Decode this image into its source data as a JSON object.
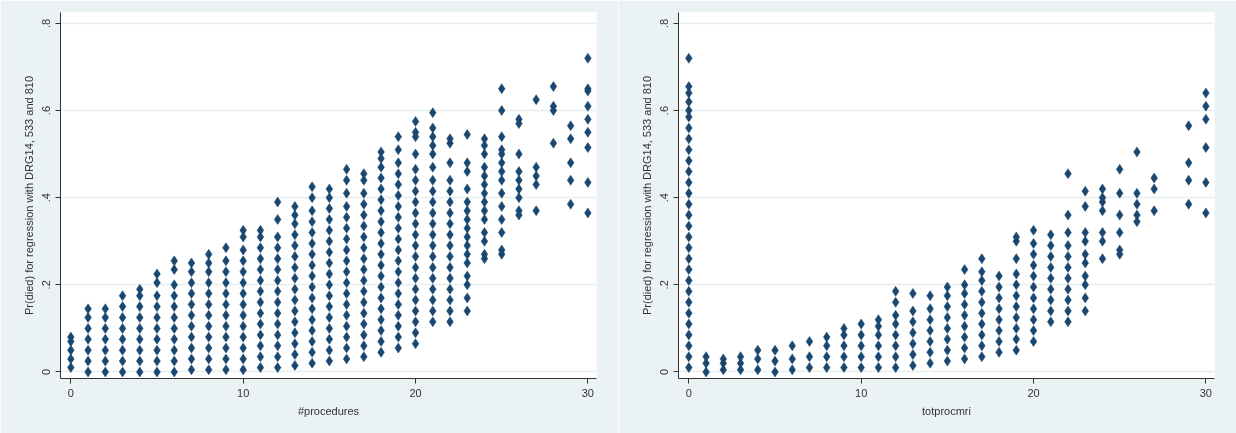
{
  "chart_data": [
    {
      "type": "scatter",
      "xlabel": "#procedures",
      "ylabel": "Pr(died) for regression with DRG14, 533 and 810",
      "color": "#1a476f",
      "marker": "diamond",
      "grid": "y",
      "xlim": [
        -0.6,
        30.5
      ],
      "xticks": [
        0,
        10,
        20,
        30
      ],
      "ylim": [
        -0.015,
        0.825
      ],
      "yticks": [
        0,
        {
          "value": 0.2,
          "label": ".2"
        },
        {
          "value": 0.4,
          "label": ".4"
        },
        {
          "value": 0.6,
          "label": ".6"
        },
        {
          "value": 0.8,
          "label": ".8"
        }
      ],
      "series": [
        {
          "x": [
            0,
            0,
            0,
            0,
            0
          ],
          "values": [
            0.01,
            0.03,
            0.05,
            0.07,
            0.08
          ]
        },
        {
          "x": [
            1,
            1,
            1,
            1,
            1,
            1,
            1
          ],
          "values": [
            0,
            0.025,
            0.05,
            0.075,
            0.1,
            0.125,
            0.145
          ]
        },
        {
          "x": [
            2,
            2,
            2,
            2,
            2,
            2,
            2
          ],
          "values": [
            0,
            0.025,
            0.05,
            0.075,
            0.1,
            0.125,
            0.145
          ]
        },
        {
          "x": [
            3,
            3,
            3,
            3,
            3,
            3,
            3,
            3
          ],
          "values": [
            0,
            0.025,
            0.05,
            0.075,
            0.1,
            0.125,
            0.15,
            0.175
          ]
        },
        {
          "x": [
            4,
            4,
            4,
            4,
            4,
            4,
            4,
            4,
            4
          ],
          "values": [
            0,
            0.025,
            0.05,
            0.075,
            0.1,
            0.125,
            0.15,
            0.175,
            0.19
          ]
        },
        {
          "x": [
            5,
            5,
            5,
            5,
            5,
            5,
            5,
            5,
            5,
            5
          ],
          "values": [
            0,
            0.025,
            0.05,
            0.075,
            0.1,
            0.125,
            0.15,
            0.175,
            0.205,
            0.225
          ]
        },
        {
          "x": [
            6,
            6,
            6,
            6,
            6,
            6,
            6,
            6,
            6,
            6,
            6
          ],
          "values": [
            0,
            0.025,
            0.05,
            0.075,
            0.1,
            0.125,
            0.15,
            0.175,
            0.2,
            0.235,
            0.255
          ]
        },
        {
          "x": [
            7,
            7,
            7,
            7,
            7,
            7,
            7,
            7,
            7,
            7,
            7
          ],
          "values": [
            0.005,
            0.03,
            0.055,
            0.08,
            0.105,
            0.13,
            0.155,
            0.18,
            0.205,
            0.23,
            0.25
          ]
        },
        {
          "x": [
            8,
            8,
            8,
            8,
            8,
            8,
            8,
            8,
            8,
            8,
            8,
            8
          ],
          "values": [
            0.005,
            0.03,
            0.055,
            0.08,
            0.105,
            0.13,
            0.155,
            0.18,
            0.205,
            0.23,
            0.25,
            0.27
          ]
        },
        {
          "x": [
            9,
            9,
            9,
            9,
            9,
            9,
            9,
            9,
            9,
            9,
            9,
            9
          ],
          "values": [
            0.005,
            0.03,
            0.055,
            0.08,
            0.105,
            0.13,
            0.155,
            0.18,
            0.205,
            0.23,
            0.255,
            0.285
          ]
        },
        {
          "x": [
            10,
            10,
            10,
            10,
            10,
            10,
            10,
            10,
            10,
            10,
            10,
            10,
            10,
            10
          ],
          "values": [
            0.005,
            0.03,
            0.055,
            0.08,
            0.105,
            0.13,
            0.155,
            0.18,
            0.205,
            0.23,
            0.255,
            0.28,
            0.31,
            0.325
          ]
        },
        {
          "x": [
            11,
            11,
            11,
            11,
            11,
            11,
            11,
            11,
            11,
            11,
            11,
            11,
            11,
            11
          ],
          "values": [
            0.01,
            0.035,
            0.06,
            0.085,
            0.11,
            0.135,
            0.16,
            0.185,
            0.21,
            0.235,
            0.26,
            0.285,
            0.31,
            0.325
          ]
        },
        {
          "x": [
            12,
            12,
            12,
            12,
            12,
            12,
            12,
            12,
            12,
            12,
            12,
            12,
            12,
            12,
            12
          ],
          "values": [
            0.01,
            0.035,
            0.06,
            0.085,
            0.11,
            0.135,
            0.16,
            0.185,
            0.21,
            0.235,
            0.26,
            0.285,
            0.31,
            0.35,
            0.39
          ]
        },
        {
          "x": [
            13,
            13,
            13,
            13,
            13,
            13,
            13,
            13,
            13,
            13,
            13,
            13,
            13,
            13,
            13,
            13
          ],
          "values": [
            0.015,
            0.04,
            0.065,
            0.09,
            0.115,
            0.14,
            0.165,
            0.19,
            0.215,
            0.24,
            0.265,
            0.29,
            0.315,
            0.34,
            0.36,
            0.38
          ]
        },
        {
          "x": [
            14,
            14,
            14,
            14,
            14,
            14,
            14,
            14,
            14,
            14,
            14,
            14,
            14,
            14,
            14,
            14,
            14
          ],
          "values": [
            0.02,
            0.045,
            0.07,
            0.095,
            0.12,
            0.145,
            0.17,
            0.195,
            0.22,
            0.245,
            0.27,
            0.295,
            0.32,
            0.345,
            0.37,
            0.4,
            0.425
          ]
        },
        {
          "x": [
            15,
            15,
            15,
            15,
            15,
            15,
            15,
            15,
            15,
            15,
            15,
            15,
            15,
            15,
            15,
            15,
            15
          ],
          "values": [
            0.025,
            0.05,
            0.075,
            0.1,
            0.125,
            0.15,
            0.175,
            0.2,
            0.225,
            0.25,
            0.275,
            0.3,
            0.325,
            0.35,
            0.375,
            0.4,
            0.42
          ]
        },
        {
          "x": [
            16,
            16,
            16,
            16,
            16,
            16,
            16,
            16,
            16,
            16,
            16,
            16,
            16,
            16,
            16,
            16,
            16,
            16
          ],
          "values": [
            0.03,
            0.055,
            0.08,
            0.105,
            0.13,
            0.155,
            0.18,
            0.205,
            0.23,
            0.255,
            0.28,
            0.305,
            0.33,
            0.355,
            0.38,
            0.41,
            0.44,
            0.465
          ]
        },
        {
          "x": [
            17,
            17,
            17,
            17,
            17,
            17,
            17,
            17,
            17,
            17,
            17,
            17,
            17,
            17,
            17,
            17,
            17,
            17
          ],
          "values": [
            0.035,
            0.06,
            0.085,
            0.11,
            0.135,
            0.16,
            0.185,
            0.21,
            0.235,
            0.26,
            0.285,
            0.31,
            0.335,
            0.36,
            0.385,
            0.41,
            0.44,
            0.455
          ]
        },
        {
          "x": [
            18,
            18,
            18,
            18,
            18,
            18,
            18,
            18,
            18,
            18,
            18,
            18,
            18,
            18,
            18,
            18,
            18,
            18,
            18,
            18
          ],
          "values": [
            0.045,
            0.07,
            0.095,
            0.12,
            0.145,
            0.17,
            0.195,
            0.22,
            0.245,
            0.27,
            0.295,
            0.32,
            0.345,
            0.37,
            0.395,
            0.42,
            0.445,
            0.47,
            0.49,
            0.505
          ]
        },
        {
          "x": [
            19,
            19,
            19,
            19,
            19,
            19,
            19,
            19,
            19,
            19,
            19,
            19,
            19,
            19,
            19,
            19,
            19,
            19,
            19,
            19
          ],
          "values": [
            0.055,
            0.08,
            0.105,
            0.13,
            0.155,
            0.18,
            0.205,
            0.23,
            0.255,
            0.28,
            0.305,
            0.33,
            0.355,
            0.38,
            0.405,
            0.43,
            0.455,
            0.48,
            0.51,
            0.54
          ]
        },
        {
          "x": [
            20,
            20,
            20,
            20,
            20,
            20,
            20,
            20,
            20,
            20,
            20,
            20,
            20,
            20,
            20,
            20,
            20,
            20,
            20,
            20,
            20
          ],
          "values": [
            0.065,
            0.09,
            0.115,
            0.14,
            0.165,
            0.19,
            0.215,
            0.24,
            0.265,
            0.29,
            0.315,
            0.34,
            0.365,
            0.39,
            0.415,
            0.44,
            0.465,
            0.5,
            0.54,
            0.55,
            0.575
          ]
        },
        {
          "x": [
            21,
            21,
            21,
            21,
            21,
            21,
            21,
            21,
            21,
            21,
            21,
            21,
            21,
            21,
            21,
            21,
            21,
            21,
            21,
            21
          ],
          "values": [
            0.115,
            0.14,
            0.165,
            0.19,
            0.215,
            0.24,
            0.265,
            0.29,
            0.315,
            0.34,
            0.365,
            0.39,
            0.415,
            0.44,
            0.47,
            0.5,
            0.52,
            0.54,
            0.56,
            0.595
          ]
        },
        {
          "x": [
            22,
            22,
            22,
            22,
            22,
            22,
            22,
            22,
            22,
            22,
            22,
            22,
            22,
            22,
            22,
            22,
            22
          ],
          "values": [
            0.115,
            0.14,
            0.165,
            0.19,
            0.215,
            0.24,
            0.265,
            0.29,
            0.315,
            0.34,
            0.365,
            0.39,
            0.415,
            0.44,
            0.48,
            0.525,
            0.535
          ]
        },
        {
          "x": [
            23,
            23,
            23,
            23,
            23,
            23,
            23,
            23,
            23,
            23,
            23,
            23,
            23,
            23,
            23,
            23
          ],
          "values": [
            0.14,
            0.17,
            0.2,
            0.22,
            0.25,
            0.27,
            0.29,
            0.31,
            0.33,
            0.35,
            0.37,
            0.39,
            0.42,
            0.46,
            0.48,
            0.545
          ]
        },
        {
          "x": [
            24,
            24,
            24,
            24,
            24,
            24,
            24,
            24,
            24,
            24,
            24,
            24,
            24,
            24
          ],
          "values": [
            0.26,
            0.27,
            0.3,
            0.32,
            0.35,
            0.37,
            0.39,
            0.41,
            0.43,
            0.45,
            0.47,
            0.5,
            0.52,
            0.535
          ]
        },
        {
          "x": [
            25,
            25,
            25,
            25,
            25,
            25,
            25,
            25,
            25,
            25,
            25,
            25,
            25,
            25
          ],
          "values": [
            0.27,
            0.28,
            0.32,
            0.35,
            0.38,
            0.41,
            0.44,
            0.46,
            0.48,
            0.5,
            0.51,
            0.54,
            0.6,
            0.65
          ]
        },
        {
          "x": [
            26,
            26,
            26,
            26,
            26,
            26,
            26,
            26,
            26
          ],
          "values": [
            0.36,
            0.37,
            0.4,
            0.42,
            0.44,
            0.46,
            0.5,
            0.57,
            0.58
          ]
        },
        {
          "x": [
            27,
            27,
            27,
            27,
            27
          ],
          "values": [
            0.37,
            0.43,
            0.45,
            0.47,
            0.625
          ]
        },
        {
          "x": [
            28,
            28,
            28,
            28
          ],
          "values": [
            0.525,
            0.6,
            0.61,
            0.655
          ]
        },
        {
          "x": [
            29,
            29,
            29,
            29,
            29
          ],
          "values": [
            0.385,
            0.44,
            0.48,
            0.535,
            0.565
          ]
        },
        {
          "x": [
            30,
            30,
            30,
            30,
            30,
            30,
            30,
            30,
            30
          ],
          "values": [
            0.365,
            0.435,
            0.515,
            0.55,
            0.58,
            0.61,
            0.645,
            0.65,
            0.72
          ]
        }
      ]
    },
    {
      "type": "scatter",
      "xlabel": "totprocmri",
      "ylabel": "Pr(died) for regression with DRG14, 533 and 810",
      "color": "#1a476f",
      "marker": "diamond",
      "grid": "y",
      "xlim": [
        -0.6,
        30.5
      ],
      "xticks": [
        0,
        10,
        20,
        30
      ],
      "ylim": [
        -0.015,
        0.825
      ],
      "yticks": [
        0,
        {
          "value": 0.2,
          "label": ".2"
        },
        {
          "value": 0.4,
          "label": ".4"
        },
        {
          "value": 0.6,
          "label": ".6"
        },
        {
          "value": 0.8,
          "label": ".8"
        }
      ],
      "series": [
        {
          "x": [
            0,
            0,
            0,
            0,
            0,
            0,
            0,
            0,
            0,
            0,
            0,
            0,
            0,
            0,
            0,
            0,
            0,
            0,
            0,
            0,
            0,
            0,
            0,
            0,
            0,
            0,
            0,
            0,
            0
          ],
          "values": [
            0.01,
            0.035,
            0.06,
            0.085,
            0.11,
            0.135,
            0.16,
            0.185,
            0.21,
            0.235,
            0.26,
            0.285,
            0.31,
            0.335,
            0.36,
            0.385,
            0.41,
            0.435,
            0.46,
            0.485,
            0.51,
            0.535,
            0.56,
            0.585,
            0.6,
            0.62,
            0.64,
            0.655,
            0.72
          ]
        },
        {
          "x": [
            1,
            1,
            1
          ],
          "values": [
            0,
            0.02,
            0.035
          ]
        },
        {
          "x": [
            2,
            2,
            2
          ],
          "values": [
            0.005,
            0.02,
            0.03
          ]
        },
        {
          "x": [
            3,
            3,
            3
          ],
          "values": [
            0.005,
            0.02,
            0.035
          ]
        },
        {
          "x": [
            4,
            4,
            4
          ],
          "values": [
            0.005,
            0.03,
            0.05
          ]
        },
        {
          "x": [
            5,
            5,
            5
          ],
          "values": [
            0,
            0.025,
            0.05
          ]
        },
        {
          "x": [
            6,
            6,
            6
          ],
          "values": [
            0.005,
            0.03,
            0.06
          ]
        },
        {
          "x": [
            7,
            7,
            7
          ],
          "values": [
            0.01,
            0.035,
            0.07
          ]
        },
        {
          "x": [
            8,
            8,
            8,
            8
          ],
          "values": [
            0.01,
            0.035,
            0.06,
            0.08
          ]
        },
        {
          "x": [
            9,
            9,
            9,
            9,
            9
          ],
          "values": [
            0.01,
            0.035,
            0.06,
            0.085,
            0.1
          ]
        },
        {
          "x": [
            10,
            10,
            10,
            10,
            10
          ],
          "values": [
            0.01,
            0.035,
            0.06,
            0.085,
            0.11
          ]
        },
        {
          "x": [
            11,
            11,
            11,
            11,
            11,
            11
          ],
          "values": [
            0.01,
            0.035,
            0.06,
            0.085,
            0.105,
            0.12
          ]
        },
        {
          "x": [
            12,
            12,
            12,
            12,
            12,
            12,
            12,
            12
          ],
          "values": [
            0.01,
            0.035,
            0.06,
            0.085,
            0.11,
            0.13,
            0.16,
            0.185
          ]
        },
        {
          "x": [
            13,
            13,
            13,
            13,
            13,
            13,
            13
          ],
          "values": [
            0.015,
            0.04,
            0.065,
            0.09,
            0.115,
            0.14,
            0.18
          ]
        },
        {
          "x": [
            14,
            14,
            14,
            14,
            14,
            14,
            14
          ],
          "values": [
            0.02,
            0.045,
            0.07,
            0.095,
            0.12,
            0.145,
            0.175
          ]
        },
        {
          "x": [
            15,
            15,
            15,
            15,
            15,
            15,
            15,
            15
          ],
          "values": [
            0.025,
            0.05,
            0.075,
            0.1,
            0.125,
            0.15,
            0.175,
            0.195
          ]
        },
        {
          "x": [
            16,
            16,
            16,
            16,
            16,
            16,
            16,
            16,
            16
          ],
          "values": [
            0.03,
            0.055,
            0.08,
            0.105,
            0.13,
            0.155,
            0.18,
            0.2,
            0.235
          ]
        },
        {
          "x": [
            17,
            17,
            17,
            17,
            17,
            17,
            17,
            17,
            17,
            17
          ],
          "values": [
            0.035,
            0.06,
            0.085,
            0.11,
            0.135,
            0.16,
            0.185,
            0.21,
            0.23,
            0.26
          ]
        },
        {
          "x": [
            18,
            18,
            18,
            18,
            18,
            18,
            18,
            18
          ],
          "values": [
            0.045,
            0.07,
            0.095,
            0.12,
            0.145,
            0.17,
            0.195,
            0.22
          ]
        },
        {
          "x": [
            19,
            19,
            19,
            19,
            19,
            19,
            19,
            19,
            19,
            19,
            19
          ],
          "values": [
            0.05,
            0.075,
            0.1,
            0.125,
            0.15,
            0.175,
            0.2,
            0.225,
            0.26,
            0.3,
            0.31
          ]
        },
        {
          "x": [
            20,
            20,
            20,
            20,
            20,
            20,
            20,
            20,
            20,
            20,
            20
          ],
          "values": [
            0.07,
            0.095,
            0.12,
            0.145,
            0.17,
            0.195,
            0.22,
            0.245,
            0.27,
            0.295,
            0.325
          ]
        },
        {
          "x": [
            21,
            21,
            21,
            21,
            21,
            21,
            21,
            21,
            21
          ],
          "values": [
            0.115,
            0.14,
            0.165,
            0.19,
            0.215,
            0.24,
            0.265,
            0.29,
            0.315
          ]
        },
        {
          "x": [
            22,
            22,
            22,
            22,
            22,
            22,
            22,
            22,
            22,
            22,
            22
          ],
          "values": [
            0.115,
            0.14,
            0.165,
            0.19,
            0.215,
            0.24,
            0.265,
            0.29,
            0.32,
            0.36,
            0.455
          ]
        },
        {
          "x": [
            23,
            23,
            23,
            23,
            23,
            23,
            23,
            23,
            23,
            23
          ],
          "values": [
            0.14,
            0.17,
            0.2,
            0.22,
            0.25,
            0.27,
            0.3,
            0.32,
            0.38,
            0.415
          ]
        },
        {
          "x": [
            24,
            24,
            24,
            24,
            24,
            24,
            24
          ],
          "values": [
            0.26,
            0.3,
            0.32,
            0.37,
            0.39,
            0.4,
            0.42
          ]
        },
        {
          "x": [
            25,
            25,
            25,
            25,
            25,
            25
          ],
          "values": [
            0.27,
            0.28,
            0.32,
            0.36,
            0.41,
            0.465
          ]
        },
        {
          "x": [
            26,
            26,
            26,
            26,
            26
          ],
          "values": [
            0.345,
            0.36,
            0.385,
            0.41,
            0.505
          ]
        },
        {
          "x": [
            27,
            27,
            27
          ],
          "values": [
            0.37,
            0.42,
            0.445
          ]
        },
        {
          "x": [
            29,
            29,
            29,
            29
          ],
          "values": [
            0.385,
            0.44,
            0.48,
            0.565
          ]
        },
        {
          "x": [
            30,
            30,
            30,
            30,
            30,
            30
          ],
          "values": [
            0.365,
            0.435,
            0.515,
            0.58,
            0.61,
            0.64
          ]
        }
      ]
    }
  ]
}
